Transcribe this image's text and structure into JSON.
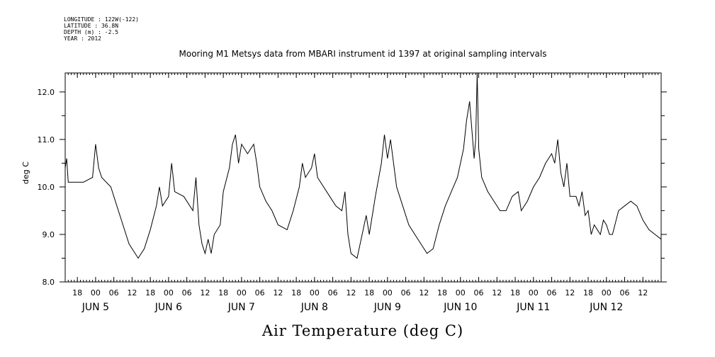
{
  "header": {
    "lines": [
      "LONGITUDE : 122W(-122)",
      "LATITUDE : 36.8N",
      "DEPTH (m) : -2.5",
      "YEAR : 2012"
    ]
  },
  "colors": {
    "line": "#000000",
    "background": "#ffffff"
  },
  "chart_data": {
    "type": "line",
    "title": "Mooring M1 Metsys data from MBARI instrument id 1397 at original sampling intervals",
    "xlabel": "Air Temperature (deg C)",
    "ylabel": "deg C",
    "ylim": [
      8.0,
      12.4
    ],
    "xlim_hours": [
      "2012-06-04 14:00",
      "2012-06-12 18:00"
    ],
    "grid": false,
    "y_ticks": [
      "8.0",
      "9.0",
      "10.0",
      "11.0",
      "12.0"
    ],
    "x_hour_ticks": [
      {
        "t": "2012-06-04 18:00",
        "label": "18"
      },
      {
        "t": "2012-06-05 00:00",
        "label": "00"
      },
      {
        "t": "2012-06-05 06:00",
        "label": "06"
      },
      {
        "t": "2012-06-05 12:00",
        "label": "12"
      },
      {
        "t": "2012-06-05 18:00",
        "label": "18"
      },
      {
        "t": "2012-06-06 00:00",
        "label": "00"
      },
      {
        "t": "2012-06-06 06:00",
        "label": "06"
      },
      {
        "t": "2012-06-06 12:00",
        "label": "12"
      },
      {
        "t": "2012-06-06 18:00",
        "label": "18"
      },
      {
        "t": "2012-06-07 00:00",
        "label": "00"
      },
      {
        "t": "2012-06-07 06:00",
        "label": "06"
      },
      {
        "t": "2012-06-07 12:00",
        "label": "12"
      },
      {
        "t": "2012-06-07 18:00",
        "label": "18"
      },
      {
        "t": "2012-06-08 00:00",
        "label": "00"
      },
      {
        "t": "2012-06-08 06:00",
        "label": "06"
      },
      {
        "t": "2012-06-08 12:00",
        "label": "12"
      },
      {
        "t": "2012-06-08 18:00",
        "label": "18"
      },
      {
        "t": "2012-06-09 00:00",
        "label": "00"
      },
      {
        "t": "2012-06-09 06:00",
        "label": "06"
      },
      {
        "t": "2012-06-09 12:00",
        "label": "12"
      },
      {
        "t": "2012-06-09 18:00",
        "label": "18"
      },
      {
        "t": "2012-06-10 00:00",
        "label": "00"
      },
      {
        "t": "2012-06-10 06:00",
        "label": "06"
      },
      {
        "t": "2012-06-10 12:00",
        "label": "12"
      },
      {
        "t": "2012-06-10 18:00",
        "label": "18"
      },
      {
        "t": "2012-06-11 00:00",
        "label": "00"
      },
      {
        "t": "2012-06-11 06:00",
        "label": "06"
      },
      {
        "t": "2012-06-11 12:00",
        "label": "12"
      },
      {
        "t": "2012-06-11 18:00",
        "label": "18"
      },
      {
        "t": "2012-06-12 00:00",
        "label": "00"
      },
      {
        "t": "2012-06-12 06:00",
        "label": "06"
      },
      {
        "t": "2012-06-12 12:00",
        "label": "12"
      }
    ],
    "x_day_labels": [
      {
        "t": "2012-06-05 00:00",
        "label": "JUN  5"
      },
      {
        "t": "2012-06-06 00:00",
        "label": "JUN  6"
      },
      {
        "t": "2012-06-07 00:00",
        "label": "JUN  7"
      },
      {
        "t": "2012-06-08 00:00",
        "label": "JUN  8"
      },
      {
        "t": "2012-06-09 00:00",
        "label": "JUN  9"
      },
      {
        "t": "2012-06-10 00:00",
        "label": "JUN 10"
      },
      {
        "t": "2012-06-11 00:00",
        "label": "JUN 11"
      },
      {
        "t": "2012-06-12 00:00",
        "label": "JUN 12"
      }
    ],
    "series": [
      {
        "points": [
          [
            "2012-06-04 14:00",
            10.4
          ],
          [
            "2012-06-04 14:30",
            10.6
          ],
          [
            "2012-06-04 15:00",
            10.1
          ],
          [
            "2012-06-04 17:00",
            10.1
          ],
          [
            "2012-06-04 20:00",
            10.1
          ],
          [
            "2012-06-04 23:00",
            10.2
          ],
          [
            "2012-06-05 00:00",
            10.9
          ],
          [
            "2012-06-05 01:00",
            10.4
          ],
          [
            "2012-06-05 02:00",
            10.2
          ],
          [
            "2012-06-05 05:00",
            10.0
          ],
          [
            "2012-06-05 07:00",
            9.6
          ],
          [
            "2012-06-05 09:00",
            9.2
          ],
          [
            "2012-06-05 11:00",
            8.8
          ],
          [
            "2012-06-05 14:00",
            8.5
          ],
          [
            "2012-06-05 16:00",
            8.7
          ],
          [
            "2012-06-05 18:00",
            9.1
          ],
          [
            "2012-06-05 20:00",
            9.6
          ],
          [
            "2012-06-05 21:00",
            10.0
          ],
          [
            "2012-06-05 22:00",
            9.6
          ],
          [
            "2012-06-06 00:00",
            9.8
          ],
          [
            "2012-06-06 01:00",
            10.5
          ],
          [
            "2012-06-06 02:00",
            9.9
          ],
          [
            "2012-06-06 05:00",
            9.8
          ],
          [
            "2012-06-06 08:00",
            9.5
          ],
          [
            "2012-06-06 09:00",
            10.2
          ],
          [
            "2012-06-06 10:00",
            9.2
          ],
          [
            "2012-06-06 11:00",
            8.8
          ],
          [
            "2012-06-06 12:00",
            8.6
          ],
          [
            "2012-06-06 13:00",
            8.9
          ],
          [
            "2012-06-06 14:00",
            8.6
          ],
          [
            "2012-06-06 15:00",
            9.0
          ],
          [
            "2012-06-06 17:00",
            9.2
          ],
          [
            "2012-06-06 18:00",
            9.9
          ],
          [
            "2012-06-06 20:00",
            10.4
          ],
          [
            "2012-06-06 21:00",
            10.9
          ],
          [
            "2012-06-06 22:00",
            11.1
          ],
          [
            "2012-06-06 23:00",
            10.5
          ],
          [
            "2012-06-07 00:00",
            10.9
          ],
          [
            "2012-06-07 02:00",
            10.7
          ],
          [
            "2012-06-07 04:00",
            10.9
          ],
          [
            "2012-06-07 05:00",
            10.5
          ],
          [
            "2012-06-07 06:00",
            10.0
          ],
          [
            "2012-06-07 08:00",
            9.7
          ],
          [
            "2012-06-07 10:00",
            9.5
          ],
          [
            "2012-06-07 12:00",
            9.2
          ],
          [
            "2012-06-07 15:00",
            9.1
          ],
          [
            "2012-06-07 17:00",
            9.5
          ],
          [
            "2012-06-07 19:00",
            10.0
          ],
          [
            "2012-06-07 20:00",
            10.5
          ],
          [
            "2012-06-07 21:00",
            10.2
          ],
          [
            "2012-06-07 23:00",
            10.4
          ],
          [
            "2012-06-08 00:00",
            10.7
          ],
          [
            "2012-06-08 01:00",
            10.2
          ],
          [
            "2012-06-08 03:00",
            10.0
          ],
          [
            "2012-06-08 05:00",
            9.8
          ],
          [
            "2012-06-08 07:00",
            9.6
          ],
          [
            "2012-06-08 09:00",
            9.5
          ],
          [
            "2012-06-08 10:00",
            9.9
          ],
          [
            "2012-06-08 11:00",
            9.0
          ],
          [
            "2012-06-08 12:00",
            8.6
          ],
          [
            "2012-06-08 14:00",
            8.5
          ],
          [
            "2012-06-08 15:00",
            8.8
          ],
          [
            "2012-06-08 17:00",
            9.4
          ],
          [
            "2012-06-08 18:00",
            9.0
          ],
          [
            "2012-06-08 20:00",
            9.8
          ],
          [
            "2012-06-08 22:00",
            10.5
          ],
          [
            "2012-06-08 23:00",
            11.1
          ],
          [
            "2012-06-09 00:00",
            10.6
          ],
          [
            "2012-06-09 01:00",
            11.0
          ],
          [
            "2012-06-09 02:00",
            10.5
          ],
          [
            "2012-06-09 03:00",
            10.0
          ],
          [
            "2012-06-09 05:00",
            9.6
          ],
          [
            "2012-06-09 07:00",
            9.2
          ],
          [
            "2012-06-09 09:00",
            9.0
          ],
          [
            "2012-06-09 11:00",
            8.8
          ],
          [
            "2012-06-09 13:00",
            8.6
          ],
          [
            "2012-06-09 15:00",
            8.7
          ],
          [
            "2012-06-09 17:00",
            9.2
          ],
          [
            "2012-06-09 19:00",
            9.6
          ],
          [
            "2012-06-09 21:00",
            9.9
          ],
          [
            "2012-06-09 23:00",
            10.2
          ],
          [
            "2012-06-10 01:00",
            10.8
          ],
          [
            "2012-06-10 02:00",
            11.4
          ],
          [
            "2012-06-10 03:00",
            11.8
          ],
          [
            "2012-06-10 04:00",
            11.0
          ],
          [
            "2012-06-10 04:30",
            10.6
          ],
          [
            "2012-06-10 05:00",
            11.0
          ],
          [
            "2012-06-10 05:30",
            12.4
          ],
          [
            "2012-06-10 06:00",
            10.8
          ],
          [
            "2012-06-10 07:00",
            10.2
          ],
          [
            "2012-06-10 09:00",
            9.9
          ],
          [
            "2012-06-10 11:00",
            9.7
          ],
          [
            "2012-06-10 13:00",
            9.5
          ],
          [
            "2012-06-10 15:00",
            9.5
          ],
          [
            "2012-06-10 17:00",
            9.8
          ],
          [
            "2012-06-10 19:00",
            9.9
          ],
          [
            "2012-06-10 20:00",
            9.5
          ],
          [
            "2012-06-10 22:00",
            9.7
          ],
          [
            "2012-06-11 00:00",
            10.0
          ],
          [
            "2012-06-11 02:00",
            10.2
          ],
          [
            "2012-06-11 04:00",
            10.5
          ],
          [
            "2012-06-11 06:00",
            10.7
          ],
          [
            "2012-06-11 07:00",
            10.5
          ],
          [
            "2012-06-11 08:00",
            11.0
          ],
          [
            "2012-06-11 09:00",
            10.3
          ],
          [
            "2012-06-11 10:00",
            10.0
          ],
          [
            "2012-06-11 11:00",
            10.5
          ],
          [
            "2012-06-11 12:00",
            9.8
          ],
          [
            "2012-06-11 14:00",
            9.8
          ],
          [
            "2012-06-11 15:00",
            9.6
          ],
          [
            "2012-06-11 16:00",
            9.9
          ],
          [
            "2012-06-11 17:00",
            9.4
          ],
          [
            "2012-06-11 18:00",
            9.5
          ],
          [
            "2012-06-11 19:00",
            9.0
          ],
          [
            "2012-06-11 20:00",
            9.2
          ],
          [
            "2012-06-11 21:00",
            9.1
          ],
          [
            "2012-06-11 22:00",
            9.0
          ],
          [
            "2012-06-11 23:00",
            9.3
          ],
          [
            "2012-06-12 00:00",
            9.2
          ],
          [
            "2012-06-12 01:00",
            9.0
          ],
          [
            "2012-06-12 02:00",
            9.0
          ],
          [
            "2012-06-12 04:00",
            9.5
          ],
          [
            "2012-06-12 06:00",
            9.6
          ],
          [
            "2012-06-12 08:00",
            9.7
          ],
          [
            "2012-06-12 10:00",
            9.6
          ],
          [
            "2012-06-12 12:00",
            9.3
          ],
          [
            "2012-06-12 14:00",
            9.1
          ],
          [
            "2012-06-12 16:00",
            9.0
          ],
          [
            "2012-06-12 18:00",
            8.9
          ]
        ]
      }
    ]
  }
}
